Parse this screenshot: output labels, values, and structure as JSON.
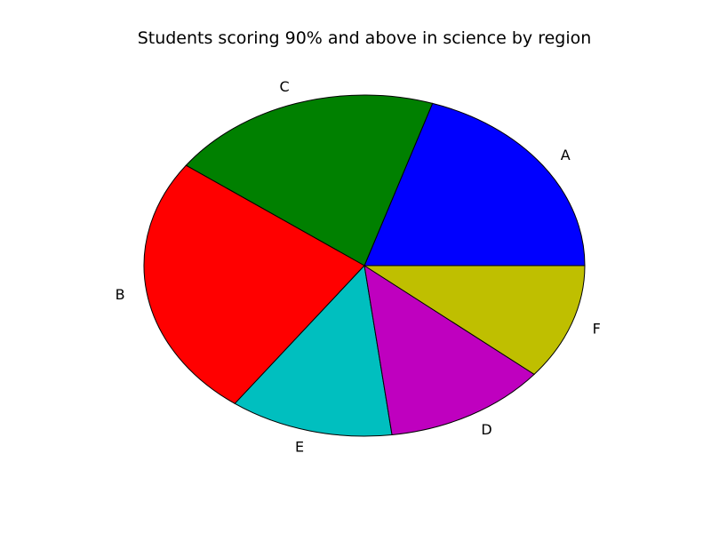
{
  "chart_data": {
    "type": "pie",
    "title": "Students scoring 90% and above in science by region",
    "slices": [
      {
        "label": "A",
        "value": 20,
        "color": "#0000ff"
      },
      {
        "label": "C",
        "value": 20,
        "color": "#008000"
      },
      {
        "label": "B",
        "value": 25,
        "color": "#ff0000"
      },
      {
        "label": "E",
        "value": 12,
        "color": "#00bfbf"
      },
      {
        "label": "D",
        "value": 12,
        "color": "#bf00bf"
      },
      {
        "label": "F",
        "value": 11,
        "color": "#bfbf00"
      }
    ],
    "start_angle_deg": 0,
    "direction": "counterclockwise",
    "legend": "none"
  }
}
